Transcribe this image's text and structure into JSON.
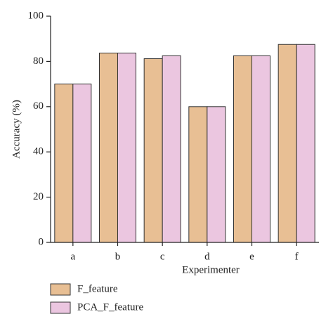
{
  "chart_data": {
    "type": "grouped_bar",
    "x_label": "Experimenter",
    "y_label": "Accuracy (%)",
    "categories": [
      "a",
      "b",
      "c",
      "d",
      "e",
      "f"
    ],
    "series": [
      {
        "name": "F_feature",
        "color": "#e8bf94",
        "values": [
          70,
          83.7,
          81.2,
          60,
          82.5,
          87.5
        ]
      },
      {
        "name": "PCA_F_feature",
        "color": "#ebc6e0",
        "values": [
          70,
          83.7,
          82.5,
          60,
          82.5,
          87.5
        ]
      }
    ],
    "ylim": [
      0,
      100
    ],
    "yticks": [
      0,
      20,
      40,
      60,
      80,
      100
    ]
  }
}
